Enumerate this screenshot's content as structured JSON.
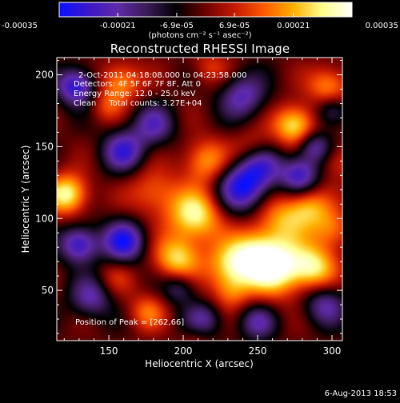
{
  "chart_data": {
    "type": "heatmap",
    "title": "Reconstructed RHESSI Image",
    "xlabel": "Heliocentric X (arcsec)",
    "ylabel": "Heliocentric Y (arcsec)",
    "xlim": [
      115,
      307
    ],
    "ylim": [
      15,
      212
    ],
    "xticks": [
      150,
      200,
      250,
      300
    ],
    "yticks": [
      50,
      100,
      150,
      200
    ],
    "colorbar": {
      "range": [
        -0.00035,
        0.00035
      ],
      "ticks": [
        "-0.00035",
        "-0.00021",
        "-6.9e-05",
        "6.9e-05",
        "0.00021",
        "0.00035"
      ],
      "unit": "(photons cm⁻² s⁻¹ asec⁻²)",
      "colors": [
        "#0a10ff",
        "#3a18c8",
        "#5f2aa8",
        "#3a1a55",
        "#000000",
        "#6e0000",
        "#c61a00",
        "#ff5a00",
        "#ffb000",
        "#ffff90",
        "#ffffff"
      ]
    },
    "annotations": {
      "time": "2-Oct-2011 04:18:08.000 to 04:23:58.000",
      "detectors": "Detectors: 4F 5F 6F 7F 8F, Att 0",
      "energy": "Energy Range: 12.0 - 25.0 keV",
      "clean": "Clean     Total counts: 3.27E+04",
      "peak": "Position of Peak = [262,66]"
    },
    "peak": {
      "x": 262,
      "y": 66
    },
    "sources": [
      {
        "x": 262,
        "y": 66,
        "v": 1.0,
        "s": 14
      },
      {
        "x": 288,
        "y": 66,
        "v": 0.75,
        "s": 11
      },
      {
        "x": 232,
        "y": 66,
        "v": 0.7,
        "s": 12
      },
      {
        "x": 208,
        "y": 102,
        "v": 0.85,
        "s": 13
      },
      {
        "x": 196,
        "y": 72,
        "v": 0.75,
        "s": 11
      },
      {
        "x": 215,
        "y": 140,
        "v": 0.6,
        "s": 11
      },
      {
        "x": 180,
        "y": 118,
        "v": 0.45,
        "s": 12
      },
      {
        "x": 122,
        "y": 117,
        "v": 0.9,
        "s": 10
      },
      {
        "x": 268,
        "y": 100,
        "v": 0.55,
        "s": 12
      },
      {
        "x": 285,
        "y": 108,
        "v": 0.55,
        "s": 10
      },
      {
        "x": 248,
        "y": 78,
        "v": 0.55,
        "s": 12
      },
      {
        "x": 300,
        "y": 92,
        "v": 0.5,
        "s": 10
      },
      {
        "x": 275,
        "y": 165,
        "v": 0.85,
        "s": 10
      },
      {
        "x": 298,
        "y": 192,
        "v": 0.6,
        "s": 10
      },
      {
        "x": 158,
        "y": 195,
        "v": 0.6,
        "s": 10
      },
      {
        "x": 148,
        "y": 178,
        "v": 0.3,
        "s": 8
      },
      {
        "x": 176,
        "y": 35,
        "v": 0.45,
        "s": 9
      },
      {
        "x": 248,
        "y": 148,
        "v": 0.35,
        "s": 10
      },
      {
        "x": 232,
        "y": 48,
        "v": 0.35,
        "s": 9
      },
      {
        "x": 155,
        "y": 58,
        "v": 0.25,
        "s": 9
      },
      {
        "x": 305,
        "y": 140,
        "v": 0.35,
        "s": 9
      },
      {
        "x": 218,
        "y": 205,
        "v": 0.3,
        "s": 9
      },
      {
        "x": 210,
        "y": 20,
        "v": 0.3,
        "s": 8
      },
      {
        "x": 130,
        "y": 82,
        "v": -0.8,
        "s": 9
      },
      {
        "x": 160,
        "y": 84,
        "v": -0.85,
        "s": 10
      },
      {
        "x": 128,
        "y": 192,
        "v": -0.85,
        "s": 9
      },
      {
        "x": 160,
        "y": 147,
        "v": -0.7,
        "s": 10
      },
      {
        "x": 240,
        "y": 122,
        "v": -0.9,
        "s": 12
      },
      {
        "x": 253,
        "y": 138,
        "v": -0.6,
        "s": 10
      },
      {
        "x": 278,
        "y": 130,
        "v": -0.75,
        "s": 9
      },
      {
        "x": 240,
        "y": 185,
        "v": -0.6,
        "s": 11
      },
      {
        "x": 288,
        "y": 150,
        "v": -0.6,
        "s": 8
      },
      {
        "x": 295,
        "y": 40,
        "v": -0.55,
        "s": 10
      },
      {
        "x": 213,
        "y": 28,
        "v": -0.6,
        "s": 9
      },
      {
        "x": 250,
        "y": 28,
        "v": -0.5,
        "s": 9
      },
      {
        "x": 138,
        "y": 45,
        "v": -0.55,
        "s": 10
      },
      {
        "x": 180,
        "y": 165,
        "v": -0.55,
        "s": 10
      },
      {
        "x": 197,
        "y": 52,
        "v": -0.45,
        "s": 8
      },
      {
        "x": 300,
        "y": 175,
        "v": -0.5,
        "s": 8
      }
    ]
  },
  "footer": {
    "timestamp": "6-Aug-2013 18:53"
  }
}
